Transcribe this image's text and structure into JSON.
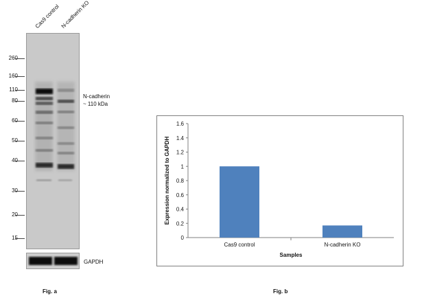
{
  "figure_a": {
    "lane_labels": [
      "Cas9 control",
      "N-cadherin KO"
    ],
    "markers": [
      "260",
      "160",
      "110",
      "80",
      "60",
      "50",
      "40",
      "30",
      "20",
      "15"
    ],
    "band_label_line1": "N-cadherin",
    "band_label_line2": "~ 110 kDa",
    "loading_control": "GAPDH",
    "caption": "Fig. a"
  },
  "figure_b": {
    "caption": "Fig. b"
  },
  "chart_data": {
    "type": "bar",
    "categories": [
      "Cas9 control",
      "N-cadherin KO"
    ],
    "values": [
      1.0,
      0.17
    ],
    "xlabel": "Samples",
    "ylabel": "Expression normalized to GAPDH",
    "ylim": [
      0,
      1.6
    ],
    "yticks": [
      "0",
      "0.2",
      "0.4",
      "0.6",
      "0.8",
      "1",
      "1.2",
      "1.4",
      "1.6"
    ],
    "bar_color": "#4f81bd",
    "grid": false,
    "legend": "none"
  }
}
